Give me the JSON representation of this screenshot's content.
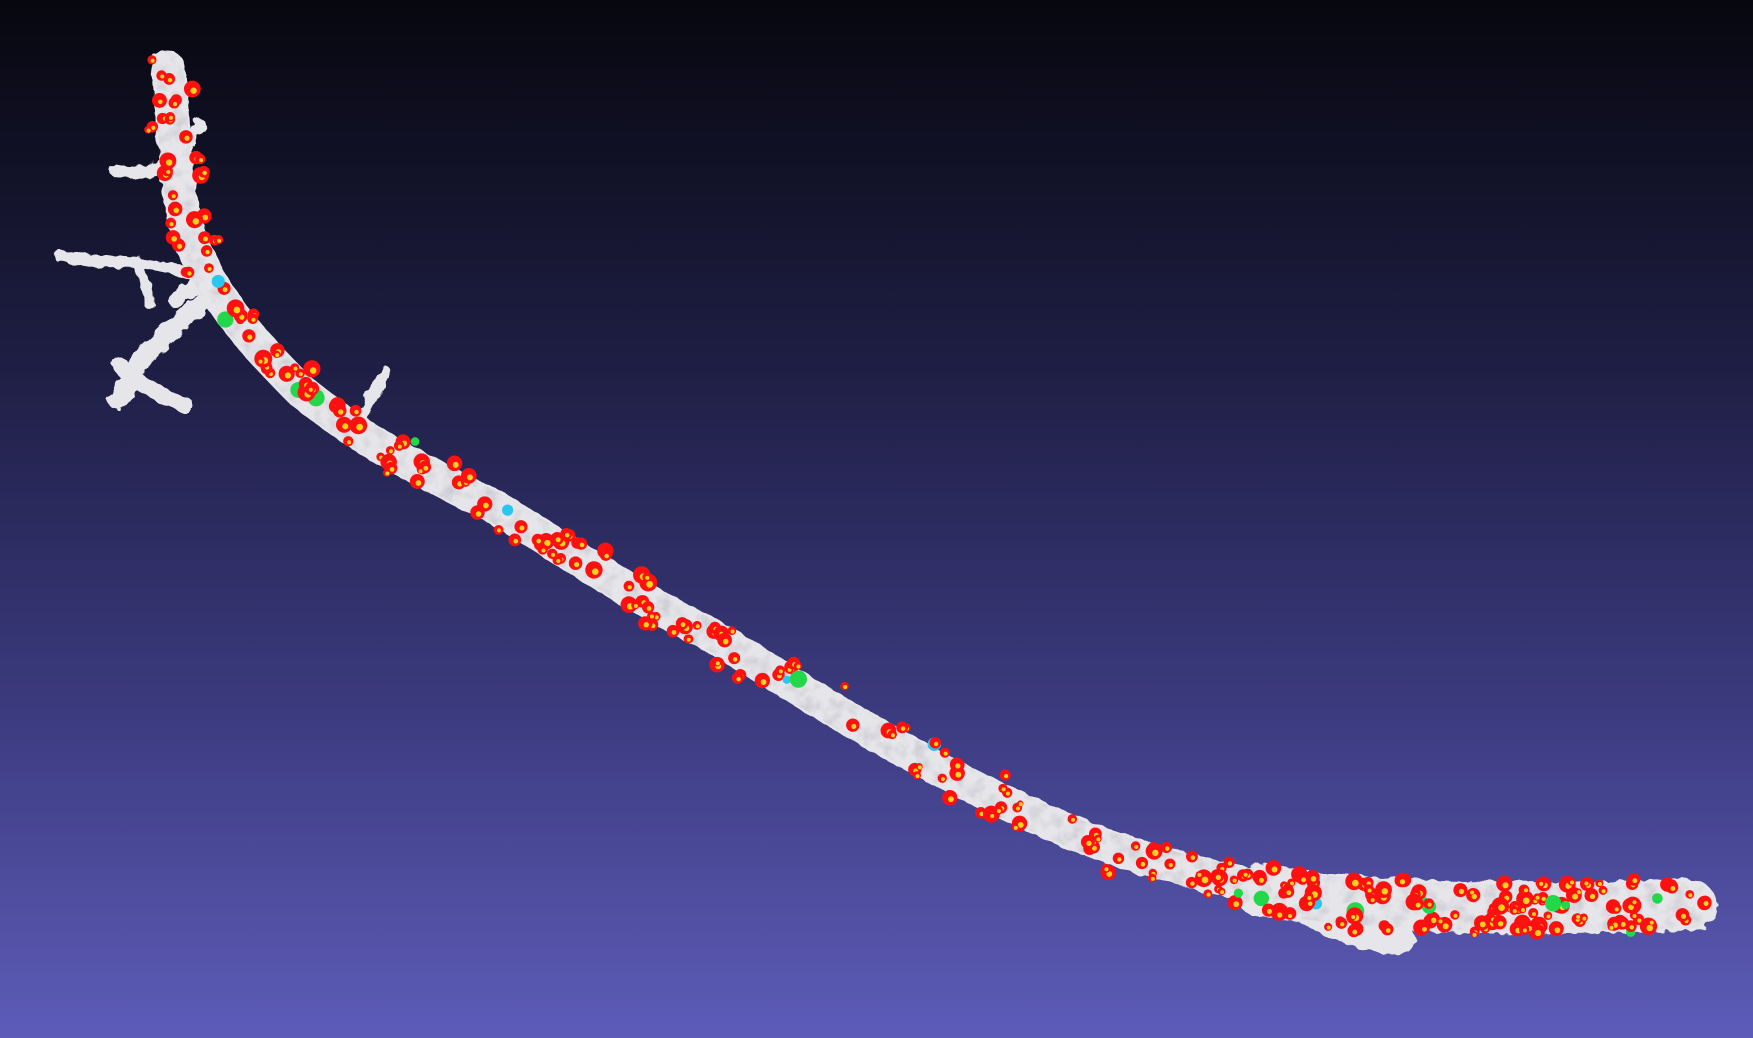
{
  "viewport": {
    "background_top": "#07070f",
    "background_bottom": "#5d5cb8"
  },
  "model": {
    "mesh_color": "#e6e6ea",
    "mesh_shadow": "#9a9aa4",
    "marker_colors": {
      "primary": "#ff1010",
      "center": "#ffd21a",
      "secondary": "#22d84a",
      "tertiary": "#29c6f0"
    }
  }
}
